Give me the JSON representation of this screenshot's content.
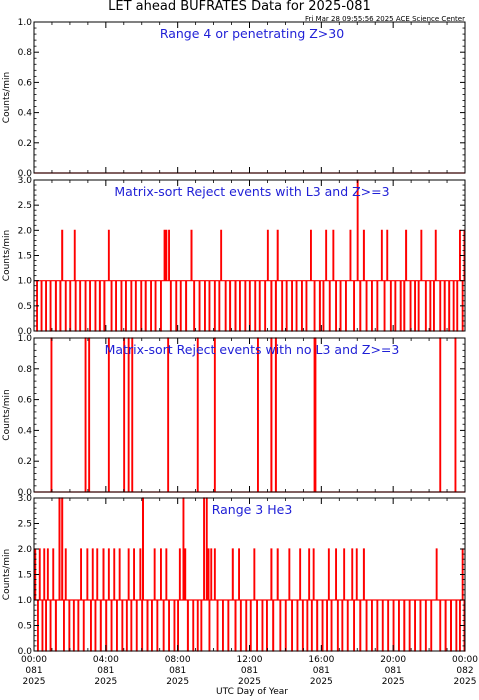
{
  "header": {
    "title": "LET ahead BUFRATES Data for 2025-081",
    "timestamp": "Fri Mar 28 09:55:56 2025 ACE Science Center"
  },
  "colors": {
    "series": "#ff0000",
    "panel_title": "#1f1fd6",
    "axis": "#000000"
  },
  "x_axis": {
    "label": "UTC Day of Year",
    "ticks": [
      {
        "lines": [
          "00:00",
          "081",
          "2025"
        ],
        "hour": 0
      },
      {
        "lines": [
          "04:00",
          "081",
          "2025"
        ],
        "hour": 4
      },
      {
        "lines": [
          "08:00",
          "081",
          "2025"
        ],
        "hour": 8
      },
      {
        "lines": [
          "12:00",
          "081",
          "2025"
        ],
        "hour": 12
      },
      {
        "lines": [
          "16:00",
          "081",
          "2025"
        ],
        "hour": 16
      },
      {
        "lines": [
          "20:00",
          "081",
          "2025"
        ],
        "hour": 20
      },
      {
        "lines": [
          "00:00",
          "082",
          "2025"
        ],
        "hour": 24
      }
    ]
  },
  "chart_data": [
    {
      "type": "line",
      "title": "Range 4 or   penetrating Z>30",
      "ylabel": "Counts/min",
      "ylim": [
        0,
        1.0
      ],
      "yticks": [
        "0.0",
        "0.2",
        "0.4",
        "0.6",
        "0.8",
        "1.0"
      ],
      "xlim": [
        0,
        24
      ],
      "series": [
        {
          "description": "constant zero counts",
          "x": [
            0,
            24
          ],
          "values": [
            0,
            0
          ]
        }
      ]
    },
    {
      "type": "line",
      "title": "Matrix-sort Reject events with L3 and Z>=3",
      "ylabel": "Counts/min",
      "ylim": [
        0,
        3.0
      ],
      "yticks": [
        "0.0",
        "0.5",
        "1.0",
        "1.5",
        "2.0",
        "2.5",
        "3.0"
      ],
      "xlim": [
        0,
        24
      ],
      "baseline_level": 1,
      "spikes_to_2": [
        1.55,
        2.25,
        4.15,
        7.25,
        7.35,
        7.5,
        8.75,
        10.4,
        13.0,
        13.55,
        15.4,
        16.25,
        16.65,
        17.6,
        18.35,
        19.35,
        19.65,
        20.7,
        21.55,
        22.35,
        23.7,
        23.95
      ],
      "spikes_to_3": [
        18.0
      ],
      "zero_drops": [
        0.15,
        0.4,
        0.65,
        0.9,
        1.2,
        1.45,
        1.75,
        2.0,
        2.3,
        2.55,
        2.85,
        3.1,
        3.4,
        3.65,
        3.9,
        4.3,
        4.55,
        4.85,
        5.1,
        5.4,
        5.65,
        5.95,
        6.2,
        6.5,
        6.75,
        7.05,
        7.6,
        7.9,
        8.15,
        8.45,
        8.9,
        9.2,
        9.5,
        9.75,
        10.05,
        10.3,
        10.65,
        10.9,
        11.2,
        11.45,
        11.75,
        12.0,
        12.3,
        12.55,
        12.85,
        13.2,
        13.45,
        13.8,
        14.05,
        14.35,
        14.6,
        14.9,
        15.15,
        15.6,
        15.9,
        16.1,
        16.45,
        16.8,
        17.05,
        17.35,
        17.8,
        18.15,
        18.5,
        18.8,
        19.1,
        19.5,
        19.85,
        20.1,
        20.4,
        20.6,
        20.95,
        21.2,
        21.4,
        21.8,
        22.05,
        22.25,
        22.6,
        22.85,
        23.1,
        23.35,
        23.55,
        23.85
      ]
    },
    {
      "type": "line",
      "title": "Matrix-sort Reject events with no L3 and Z>=3",
      "ylabel": "Counts/min",
      "ylim": [
        0,
        1.0
      ],
      "yticks": [
        "0.0",
        "0.2",
        "0.4",
        "0.6",
        "0.8",
        "1.0"
      ],
      "xlim": [
        0,
        24
      ],
      "baseline_level": 0,
      "spikes_to_1": [
        0.95,
        2.85,
        3.05,
        4.15,
        5.0,
        5.25,
        5.45,
        7.45,
        9.1,
        10.05,
        12.45,
        13.2,
        13.45,
        15.6,
        15.65,
        22.6,
        23.45
      ]
    },
    {
      "type": "line",
      "title": "Range 3 He3",
      "ylabel": "Counts/min",
      "ylim": [
        0,
        3.0
      ],
      "yticks": [
        "0.0",
        "0.5",
        "1.0",
        "1.5",
        "2.0",
        "2.5",
        "3.0"
      ],
      "xlim": [
        0,
        24
      ],
      "baseline_level": 1,
      "spikes_to_2": [
        0.05,
        0.3,
        0.55,
        0.75,
        1.05,
        1.75,
        2.6,
        2.95,
        3.25,
        3.5,
        3.85,
        4.15,
        4.45,
        4.75,
        5.25,
        5.55,
        5.9,
        6.7,
        7.05,
        7.35,
        8.1,
        8.4,
        9.7,
        9.85,
        10.05,
        11.05,
        11.4,
        12.25,
        13.2,
        13.55,
        14.2,
        14.8,
        15.3,
        15.55,
        16.4,
        16.8,
        17.25,
        17.7,
        17.95,
        18.35,
        22.4,
        23.85
      ],
      "spikes_to_3": [
        1.4,
        1.55,
        6.05,
        8.3,
        9.45,
        9.6
      ],
      "zero_drops": [
        0.2,
        0.45,
        0.65,
        0.9,
        1.2,
        1.65,
        1.95,
        2.2,
        2.45,
        2.75,
        3.15,
        3.4,
        3.7,
        4.0,
        4.3,
        4.6,
        4.9,
        5.15,
        5.4,
        5.7,
        6.0,
        6.3,
        6.55,
        6.85,
        7.2,
        7.5,
        7.8,
        8.0,
        8.55,
        8.85,
        9.1,
        9.3,
        9.75,
        10.2,
        10.5,
        10.8,
        11.2,
        11.5,
        11.8,
        12.05,
        12.4,
        12.7,
        12.95,
        13.3,
        13.7,
        14.0,
        14.35,
        14.65,
        14.95,
        15.2,
        15.45,
        15.75,
        16.05,
        16.3,
        16.55,
        16.9,
        17.15,
        17.45,
        17.8,
        18.15,
        18.5,
        18.8,
        19.1,
        19.4,
        19.7,
        20.0,
        20.3,
        20.6,
        20.9,
        21.2,
        21.5,
        21.8,
        22.1,
        22.6,
        22.9,
        23.2,
        23.5,
        23.7,
        23.95
      ]
    }
  ]
}
